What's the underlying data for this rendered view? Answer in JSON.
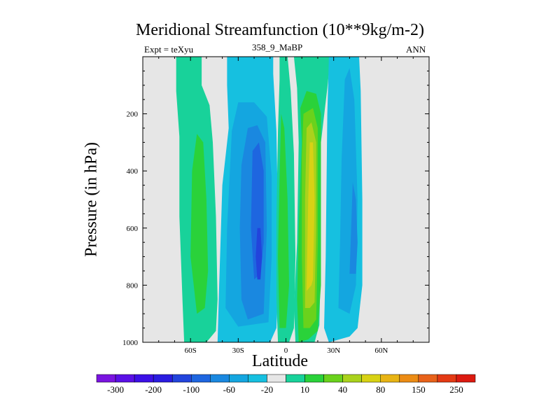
{
  "chart_data": {
    "type": "heatmap",
    "title": "Meridional Streamfunction (10**9kg/m-2)",
    "left_annotation": "Expt = teXyu",
    "center_annotation": "358_9_MaBP",
    "right_annotation": "ANN",
    "xlabel": "Latitude",
    "ylabel": "Pressure (in hPa)",
    "xlim": [
      -90,
      90
    ],
    "ylim": [
      1000,
      0
    ],
    "x_ticks": [
      {
        "value": -60,
        "label": "60S"
      },
      {
        "value": -30,
        "label": "30S"
      },
      {
        "value": 0,
        "label": "0"
      },
      {
        "value": 30,
        "label": "30N"
      },
      {
        "value": 60,
        "label": "60N"
      }
    ],
    "y_ticks": [
      {
        "value": 200,
        "label": "200"
      },
      {
        "value": 400,
        "label": "400"
      },
      {
        "value": 600,
        "label": "600"
      },
      {
        "value": 800,
        "label": "800"
      },
      {
        "value": 1000,
        "label": "1000"
      }
    ],
    "missing_color": "#e6e6e6",
    "colorbar": {
      "colors": [
        "#7a14e0",
        "#5a10e6",
        "#3c10e6",
        "#2a1ce0",
        "#2244dc",
        "#1e66e0",
        "#1a88e0",
        "#14a6e0",
        "#16c0e0",
        "#e6e6e6",
        "#18d29a",
        "#2ad23a",
        "#6ad21c",
        "#aad21c",
        "#d8d214",
        "#e8b414",
        "#ec8c14",
        "#e8621a",
        "#e43a14",
        "#dc1a10"
      ],
      "labels": [
        "-300",
        "-200",
        "-100",
        "-60",
        "-20",
        "10",
        "40",
        "80",
        "150",
        "250"
      ]
    },
    "fields": [
      {
        "color": "#18d29a",
        "polygon": [
          [
            -64,
            1000
          ],
          [
            -65,
            860
          ],
          [
            -67,
            560
          ],
          [
            -67,
            280
          ],
          [
            -69,
            120
          ],
          [
            -69,
            0
          ],
          [
            -53,
            0
          ],
          [
            -53,
            100
          ],
          [
            -48,
            170
          ],
          [
            -46,
            300
          ],
          [
            -44,
            560
          ],
          [
            -43,
            850
          ],
          [
            -44,
            960
          ],
          [
            -50,
            1000
          ]
        ]
      },
      {
        "color": "#2ad23a",
        "polygon": [
          [
            -56,
            900
          ],
          [
            -60,
            700
          ],
          [
            -59,
            400
          ],
          [
            -56,
            270
          ],
          [
            -52,
            300
          ],
          [
            -50,
            500
          ],
          [
            -49,
            750
          ],
          [
            -51,
            880
          ]
        ]
      },
      {
        "color": "#16c0e0",
        "polygon": [
          [
            -43,
            1000
          ],
          [
            -42,
            800
          ],
          [
            -40,
            450
          ],
          [
            -36,
            250
          ],
          [
            -37,
            100
          ],
          [
            -37,
            0
          ],
          [
            -8,
            0
          ],
          [
            -8,
            60
          ],
          [
            -6,
            260
          ],
          [
            -5,
            560
          ],
          [
            -5,
            830
          ],
          [
            -6,
            950
          ],
          [
            -10,
            1000
          ]
        ]
      },
      {
        "color": "#14a6e0",
        "polygon": [
          [
            -38,
            880
          ],
          [
            -37,
            600
          ],
          [
            -34,
            260
          ],
          [
            -30,
            160
          ],
          [
            -20,
            160
          ],
          [
            -12,
            210
          ],
          [
            -9,
            420
          ],
          [
            -9,
            700
          ],
          [
            -11,
            930
          ],
          [
            -30,
            945
          ]
        ]
      },
      {
        "color": "#1a88e0",
        "polygon": [
          [
            -28,
            850
          ],
          [
            -29,
            600
          ],
          [
            -28,
            380
          ],
          [
            -24,
            250
          ],
          [
            -18,
            240
          ],
          [
            -13,
            300
          ],
          [
            -12,
            600
          ],
          [
            -14,
            900
          ],
          [
            -24,
            920
          ]
        ]
      },
      {
        "color": "#1e66e0",
        "polygon": [
          [
            -20,
            780
          ],
          [
            -22,
            600
          ],
          [
            -21,
            330
          ],
          [
            -17,
            300
          ],
          [
            -14,
            400
          ],
          [
            -14,
            650
          ],
          [
            -16,
            760
          ]
        ]
      },
      {
        "color": "#2244dc",
        "polygon": [
          [
            -18,
            780
          ],
          [
            -19,
            700
          ],
          [
            -18,
            600
          ],
          [
            -16,
            600
          ],
          [
            -15,
            700
          ],
          [
            -16,
            780
          ]
        ]
      },
      {
        "color": "#18d29a",
        "polygon": [
          [
            -5,
            1000
          ],
          [
            -6,
            850
          ],
          [
            -6,
            560
          ],
          [
            -5,
            260
          ],
          [
            -4,
            80
          ],
          [
            -4,
            0
          ],
          [
            1,
            0
          ],
          [
            3,
            120
          ],
          [
            5,
            340
          ],
          [
            6,
            700
          ],
          [
            5,
            950
          ],
          [
            2,
            1000
          ]
        ]
      },
      {
        "color": "#2ad23a",
        "polygon": [
          [
            -4,
            950
          ],
          [
            -5,
            700
          ],
          [
            -4,
            420
          ],
          [
            -3,
            200
          ],
          [
            -1,
            250
          ],
          [
            1,
            500
          ],
          [
            2,
            800
          ],
          [
            0,
            950
          ]
        ]
      },
      {
        "color": "#18d29a",
        "polygon": [
          [
            6,
            1000
          ],
          [
            5,
            880
          ],
          [
            7,
            650
          ],
          [
            8,
            300
          ],
          [
            7,
            110
          ],
          [
            5,
            0
          ],
          [
            28,
            0
          ],
          [
            26,
            110
          ],
          [
            22,
            300
          ],
          [
            22,
            700
          ],
          [
            21,
            940
          ],
          [
            18,
            1000
          ]
        ]
      },
      {
        "color": "#2ad23a",
        "polygon": [
          [
            8,
            1000
          ],
          [
            7,
            850
          ],
          [
            8,
            600
          ],
          [
            10,
            300
          ],
          [
            9,
            180
          ],
          [
            13,
            120
          ],
          [
            19,
            130
          ],
          [
            22,
            200
          ],
          [
            22,
            500
          ],
          [
            22,
            800
          ],
          [
            20,
            960
          ],
          [
            14,
            990
          ]
        ]
      },
      {
        "color": "#6ad21c",
        "polygon": [
          [
            11,
            950
          ],
          [
            10,
            700
          ],
          [
            10,
            350
          ],
          [
            11,
            200
          ],
          [
            17,
            180
          ],
          [
            20,
            250
          ],
          [
            20,
            650
          ],
          [
            19,
            920
          ],
          [
            15,
            950
          ]
        ]
      },
      {
        "color": "#aad21c",
        "polygon": [
          [
            12,
            880
          ],
          [
            12,
            500
          ],
          [
            13,
            250
          ],
          [
            16,
            230
          ],
          [
            19,
            300
          ],
          [
            19,
            600
          ],
          [
            18,
            860
          ],
          [
            15,
            880
          ]
        ]
      },
      {
        "color": "#d8d214",
        "polygon": [
          [
            13,
            820
          ],
          [
            14,
            500
          ],
          [
            15,
            300
          ],
          [
            17,
            300
          ],
          [
            18,
            500
          ],
          [
            17,
            780
          ],
          [
            16,
            800
          ]
        ]
      },
      {
        "color": "#16c0e0",
        "polygon": [
          [
            27,
            1000
          ],
          [
            24,
            950
          ],
          [
            25,
            700
          ],
          [
            26,
            200
          ],
          [
            27,
            0
          ],
          [
            46,
            0
          ],
          [
            47,
            120
          ],
          [
            48,
            500
          ],
          [
            48,
            800
          ],
          [
            45,
            950
          ],
          [
            40,
            980
          ]
        ]
      },
      {
        "color": "#14a6e0",
        "polygon": [
          [
            33,
            880
          ],
          [
            34,
            650
          ],
          [
            35,
            360
          ],
          [
            37,
            80
          ],
          [
            40,
            40
          ],
          [
            43,
            150
          ],
          [
            45,
            500
          ],
          [
            44,
            800
          ],
          [
            40,
            900
          ]
        ]
      },
      {
        "color": "#1a88e0",
        "polygon": [
          [
            40,
            760
          ],
          [
            41,
            600
          ],
          [
            42,
            440
          ],
          [
            44,
            500
          ],
          [
            45,
            650
          ],
          [
            44,
            760
          ]
        ]
      }
    ]
  }
}
